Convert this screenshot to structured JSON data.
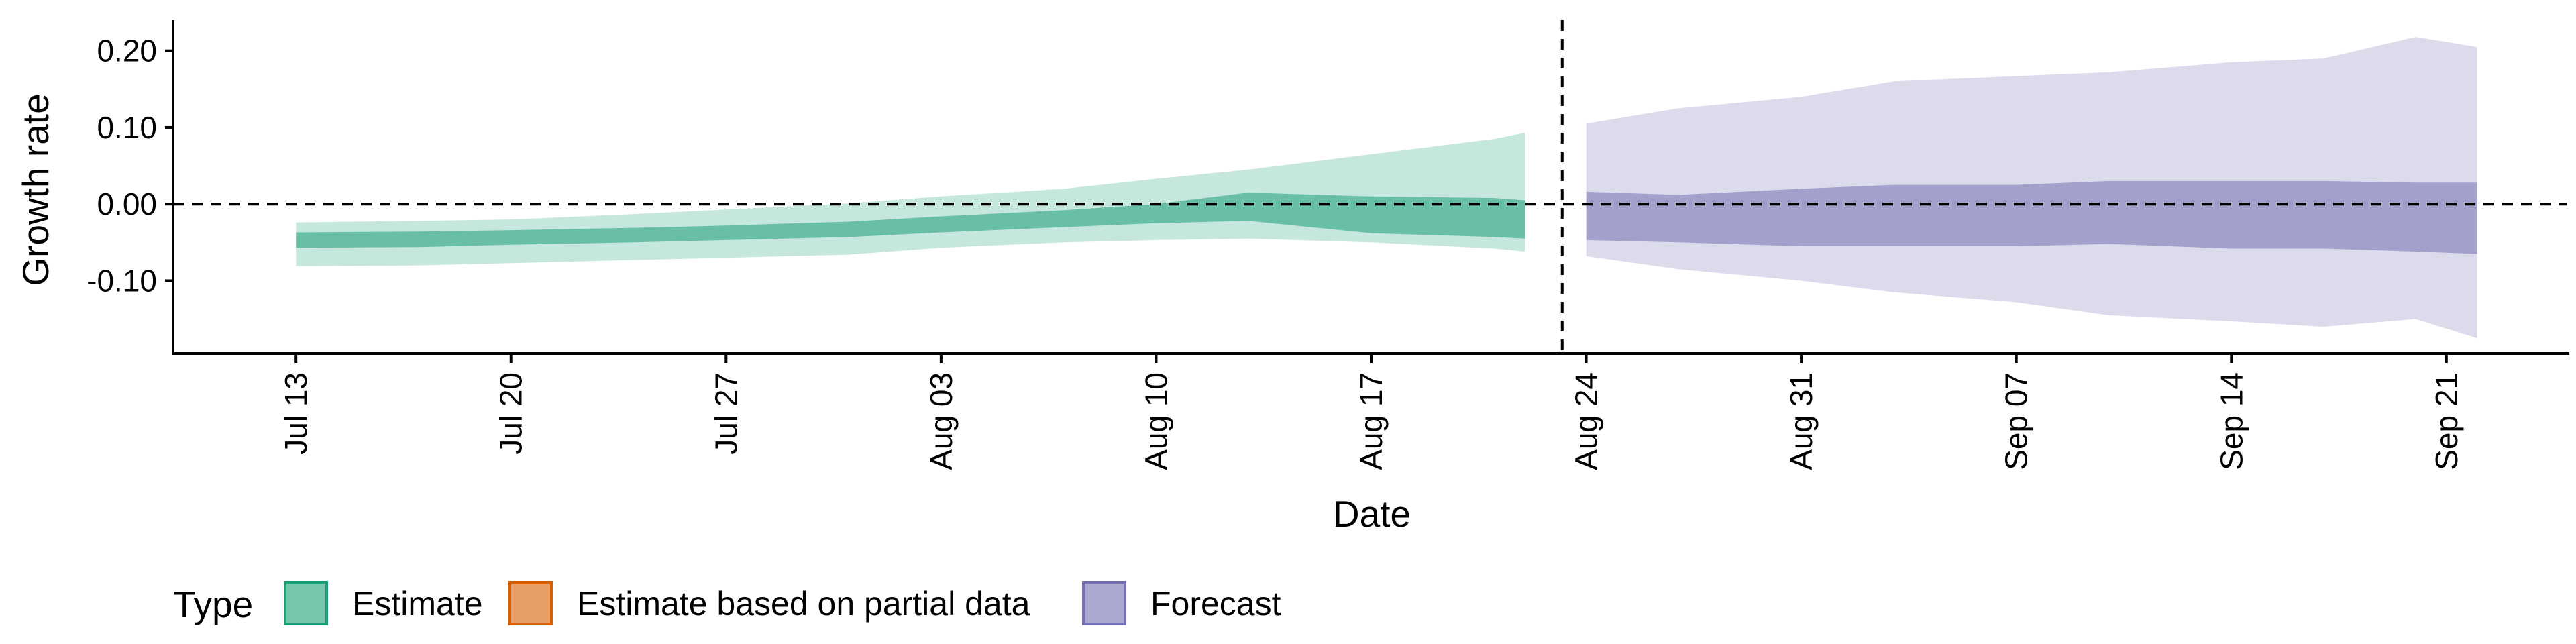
{
  "chart_data": {
    "type": "area",
    "xlabel": "Date",
    "ylabel": "Growth rate",
    "y_ticks": [
      "0.20",
      "0.10",
      "0.00",
      "-0.10"
    ],
    "x_ticks": [
      "Jul 13",
      "Jul 20",
      "Jul 27",
      "Aug 03",
      "Aug 10",
      "Aug 17",
      "Aug 24",
      "Aug 31",
      "Sep 07",
      "Sep 14",
      "Sep 21"
    ],
    "x_range": [
      "2020-07-09",
      "2020-09-25"
    ],
    "y_range": [
      -0.195,
      0.24
    ],
    "reference_lines": {
      "horizontal_y": 0.0,
      "vertical_date": "2020-08-23",
      "style": "dashed"
    },
    "legend": {
      "title": "Type",
      "position": "bottom-left",
      "entries": [
        {
          "label": "Estimate",
          "color": "#1b9e77"
        },
        {
          "label": "Estimate based on partial data",
          "color": "#d95f02"
        },
        {
          "label": "Forecast",
          "color": "#7570b3"
        }
      ]
    },
    "series": [
      {
        "name": "Estimate",
        "color": "#1b9e77",
        "points": [
          {
            "date": "2020-07-13",
            "outer": [
              -0.081,
              -0.024
            ],
            "inner": [
              -0.057,
              -0.037
            ]
          },
          {
            "date": "2020-07-17",
            "outer": [
              -0.08,
              -0.022
            ],
            "inner": [
              -0.056,
              -0.036
            ]
          },
          {
            "date": "2020-07-20",
            "outer": [
              -0.077,
              -0.02
            ],
            "inner": [
              -0.053,
              -0.034
            ]
          },
          {
            "date": "2020-07-24",
            "outer": [
              -0.073,
              -0.013
            ],
            "inner": [
              -0.05,
              -0.031
            ]
          },
          {
            "date": "2020-07-27",
            "outer": [
              -0.07,
              -0.007
            ],
            "inner": [
              -0.047,
              -0.028
            ]
          },
          {
            "date": "2020-07-31",
            "outer": [
              -0.066,
              0.001
            ],
            "inner": [
              -0.043,
              -0.023
            ]
          },
          {
            "date": "2020-08-03",
            "outer": [
              -0.057,
              0.01
            ],
            "inner": [
              -0.037,
              -0.016
            ]
          },
          {
            "date": "2020-08-07",
            "outer": [
              -0.05,
              0.02
            ],
            "inner": [
              -0.03,
              -0.008
            ]
          },
          {
            "date": "2020-08-10",
            "outer": [
              -0.047,
              0.033
            ],
            "inner": [
              -0.025,
              0.0
            ]
          },
          {
            "date": "2020-08-13",
            "outer": [
              -0.045,
              0.045
            ],
            "inner": [
              -0.022,
              0.015
            ]
          },
          {
            "date": "2020-08-17",
            "outer": [
              -0.05,
              0.065
            ],
            "inner": [
              -0.038,
              0.01
            ]
          },
          {
            "date": "2020-08-21",
            "outer": [
              -0.058,
              0.085
            ],
            "inner": [
              -0.043,
              0.008
            ]
          },
          {
            "date": "2020-08-22",
            "outer": [
              -0.062,
              0.093
            ],
            "inner": [
              -0.045,
              0.005
            ]
          }
        ]
      },
      {
        "name": "Forecast",
        "color": "#7570b3",
        "points": [
          {
            "date": "2020-08-24",
            "outer": [
              -0.068,
              0.105
            ],
            "inner": [
              -0.047,
              0.016
            ]
          },
          {
            "date": "2020-08-27",
            "outer": [
              -0.085,
              0.125
            ],
            "inner": [
              -0.05,
              0.012
            ]
          },
          {
            "date": "2020-08-31",
            "outer": [
              -0.1,
              0.14
            ],
            "inner": [
              -0.055,
              0.02
            ]
          },
          {
            "date": "2020-09-03",
            "outer": [
              -0.115,
              0.16
            ],
            "inner": [
              -0.055,
              0.025
            ]
          },
          {
            "date": "2020-09-07",
            "outer": [
              -0.128,
              0.167
            ],
            "inner": [
              -0.055,
              0.025
            ]
          },
          {
            "date": "2020-09-10",
            "outer": [
              -0.145,
              0.172
            ],
            "inner": [
              -0.052,
              0.03
            ]
          },
          {
            "date": "2020-09-14",
            "outer": [
              -0.153,
              0.185
            ],
            "inner": [
              -0.058,
              0.03
            ]
          },
          {
            "date": "2020-09-17",
            "outer": [
              -0.16,
              0.19
            ],
            "inner": [
              -0.058,
              0.03
            ]
          },
          {
            "date": "2020-09-20",
            "outer": [
              -0.15,
              0.218
            ],
            "inner": [
              -0.062,
              0.028
            ]
          },
          {
            "date": "2020-09-22",
            "outer": [
              -0.175,
              0.205
            ],
            "inner": [
              -0.065,
              0.028
            ]
          }
        ]
      }
    ]
  }
}
